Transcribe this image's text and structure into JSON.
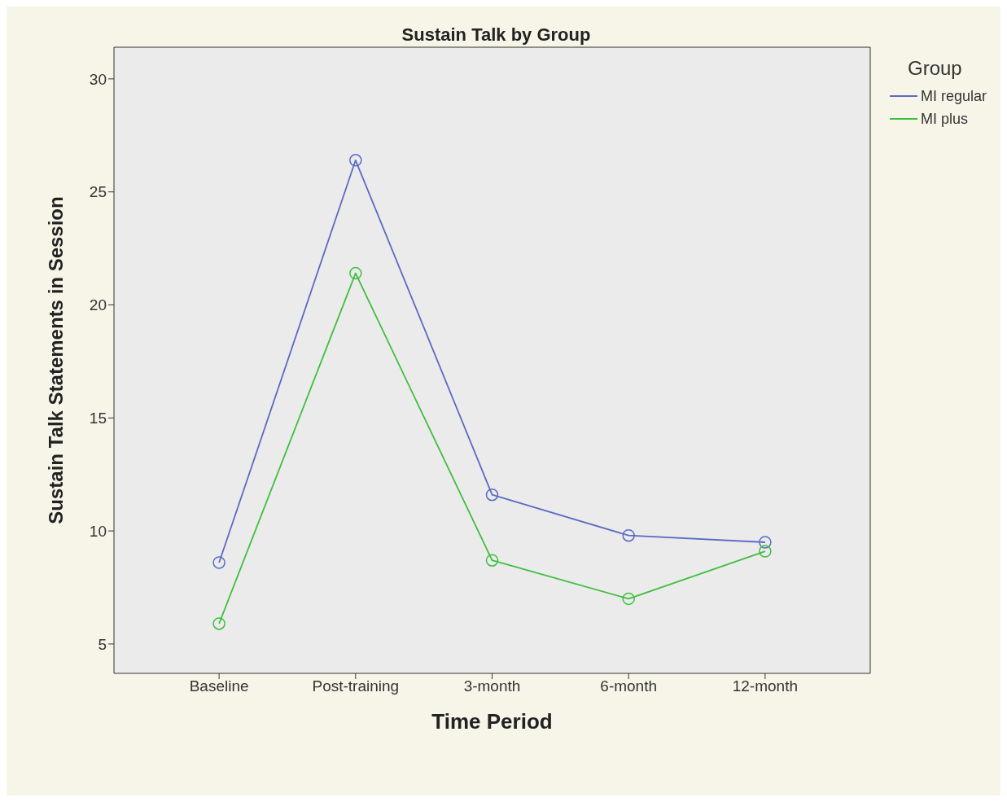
{
  "chart_data": {
    "type": "line",
    "title": "Sustain Talk by Group",
    "xlabel": "Time Period",
    "ylabel": "Sustain Talk Statements in Session",
    "legend_title": "Group",
    "categories": [
      "Baseline",
      "Post-training",
      "3-month",
      "6-month",
      "12-month"
    ],
    "series": [
      {
        "name": "MI regular",
        "color": "#5a6bc4",
        "values": [
          8.6,
          26.4,
          11.6,
          9.8,
          9.5
        ]
      },
      {
        "name": "MI plus",
        "color": "#3fbf3f",
        "values": [
          5.9,
          21.4,
          8.7,
          7.0,
          9.1
        ]
      }
    ],
    "ylim": [
      3.7,
      31.4
    ],
    "yticks": [
      5,
      10,
      15,
      20,
      25,
      30
    ],
    "grid": false,
    "legend": "top right",
    "marker": "circle",
    "line_style": "solid"
  }
}
